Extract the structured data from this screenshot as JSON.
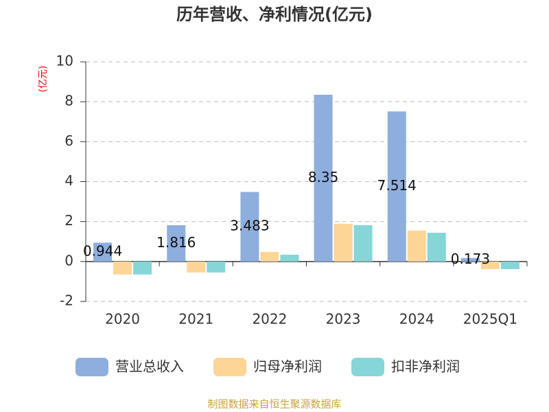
{
  "chart_data": {
    "type": "bar",
    "title": "历年营收、净利情况(亿元)",
    "y_axis_label": "(亿元)",
    "categories": [
      "2020",
      "2021",
      "2022",
      "2023",
      "2024",
      "2025Q1"
    ],
    "series": [
      {
        "name": "营业总收入",
        "color": "#8eaedd",
        "values": [
          0.944,
          1.816,
          3.483,
          8.35,
          7.514,
          0.173
        ],
        "show_labels": true
      },
      {
        "name": "归母净利润",
        "color": "#fdd597",
        "values": [
          -0.65,
          -0.55,
          0.48,
          1.89,
          1.55,
          -0.38
        ]
      },
      {
        "name": "扣非净利润",
        "color": "#86d6d8",
        "values": [
          -0.65,
          -0.55,
          0.34,
          1.82,
          1.44,
          -0.38
        ]
      }
    ],
    "ylim": [
      -2,
      10
    ],
    "yticks": [
      -2,
      0,
      2,
      4,
      6,
      8,
      10
    ],
    "grid": true,
    "legend": "bottom",
    "source": "制图数据来自恒生聚源数据库"
  }
}
